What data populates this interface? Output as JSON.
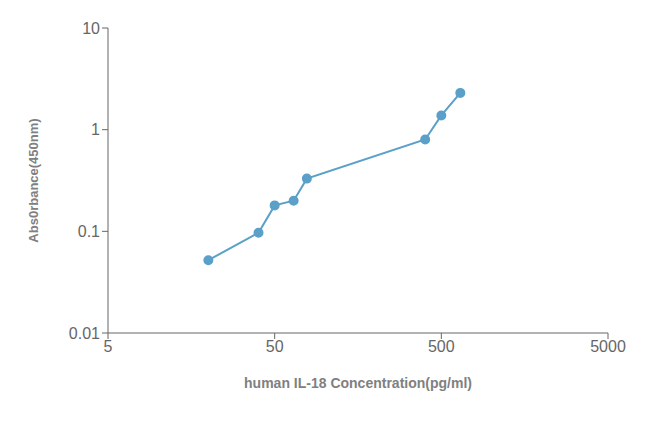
{
  "chart_data": {
    "type": "line",
    "xlabel": "human IL-18 Concentration(pg/ml)",
    "ylabel": "Abs0rbance(450nm)",
    "x": [
      20,
      40,
      50,
      65,
      78,
      400,
      500,
      650
    ],
    "values": [
      0.052,
      0.097,
      0.18,
      0.2,
      0.33,
      0.8,
      1.38,
      2.3
    ],
    "color": "#5aa0c8",
    "marker": "circle",
    "xlim": [
      5,
      5000
    ],
    "ylim": [
      0.01,
      10
    ],
    "xticks": [
      5,
      50,
      500,
      5000
    ],
    "yticks": [
      0.01,
      0.1,
      1,
      10
    ],
    "log": true,
    "grid": false
  }
}
